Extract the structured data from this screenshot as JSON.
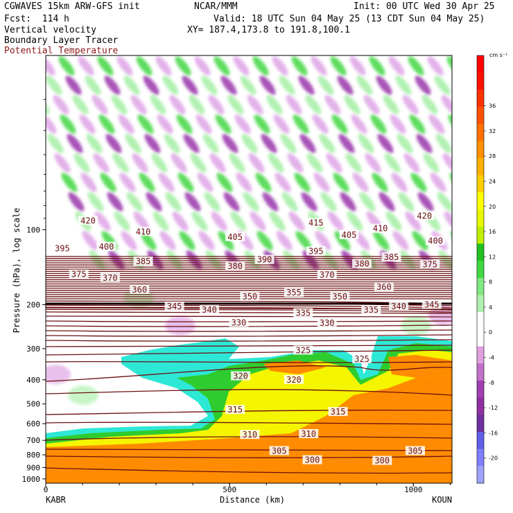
{
  "header": {
    "line1_left": "CGWAVES 15km ARW-GFS init",
    "line1_mid": "NCAR/MMM",
    "line1_right": "Init: 00 UTC Wed 30 Apr 25",
    "line2_left": "Fcst:  114 h",
    "line2_right": "Valid: 18 UTC Sun 04 May 25 (13 CDT Sun 04 May 25)",
    "line3_left": "Vertical velocity",
    "line3_right": "XY= 187.4,173.8 to 191.8,100.1",
    "line4_left": "Boundary Layer Tracer",
    "line5_left": "Potential Temperature"
  },
  "colors": {
    "theta": "#6b0f12",
    "theta_label_text": "#6b0f12",
    "potential_temperature_label": "#8b1a1a",
    "tracer_high": "#ff8c00",
    "tracer_mid": "#f5f500",
    "tracer_low": "#2ee8d6"
  },
  "chart_data": {
    "type": "cross-section",
    "xlabel": "Distance (km)",
    "ylabel": "Pressure (hPa), log scale",
    "x_ticks": [
      "0",
      "500",
      "1000"
    ],
    "x_tick_values": [
      0,
      500,
      1000
    ],
    "xlim": [
      0,
      1105
    ],
    "y_ticks": [
      "100",
      "200",
      "300",
      "400",
      "500",
      "600",
      "700",
      "800",
      "900",
      "1000"
    ],
    "y_tick_values": [
      100,
      200,
      300,
      400,
      500,
      600,
      700,
      800,
      900,
      1000
    ],
    "ylim": [
      1040,
      20
    ],
    "y_scale": "log",
    "left_endpoint": "KABR",
    "right_endpoint": "KOUN",
    "colorbar": {
      "unit": "cm s⁻¹",
      "levels": [
        -20,
        -16,
        -12,
        -8,
        -4,
        0,
        4,
        8,
        12,
        16,
        20,
        24,
        28,
        32,
        36
      ],
      "colors": [
        "#a0a0ff",
        "#8080ff",
        "#6060e8",
        "#7030a0",
        "#9030a0",
        "#a040b0",
        "#c070c8",
        "#e0a0e0",
        "#ffffff",
        "#ffffff",
        "#b0f0b0",
        "#80e880",
        "#40d840",
        "#20c020",
        "#c0f000",
        "#e8f800",
        "#ffff00",
        "#ffd000",
        "#ffb000",
        "#ff9000",
        "#ff7000",
        "#ff5000",
        "#ff3000",
        "#ff1000",
        "#ff0000"
      ]
    },
    "theta_labels": [
      {
        "text": "420",
        "x": 115,
        "p": 92
      },
      {
        "text": "410",
        "x": 265,
        "p": 102
      },
      {
        "text": "395",
        "x": 45,
        "p": 119
      },
      {
        "text": "400",
        "x": 165,
        "p": 117
      },
      {
        "text": "405",
        "x": 515,
        "p": 107
      },
      {
        "text": "415",
        "x": 735,
        "p": 94
      },
      {
        "text": "405",
        "x": 825,
        "p": 105
      },
      {
        "text": "410",
        "x": 910,
        "p": 99
      },
      {
        "text": "420",
        "x": 1030,
        "p": 88
      },
      {
        "text": "400",
        "x": 1060,
        "p": 111
      },
      {
        "text": "385",
        "x": 265,
        "p": 134
      },
      {
        "text": "380",
        "x": 515,
        "p": 140
      },
      {
        "text": "390",
        "x": 595,
        "p": 132
      },
      {
        "text": "395",
        "x": 735,
        "p": 122
      },
      {
        "text": "380",
        "x": 860,
        "p": 137
      },
      {
        "text": "385",
        "x": 940,
        "p": 129
      },
      {
        "text": "375",
        "x": 1045,
        "p": 138
      },
      {
        "text": "375",
        "x": 90,
        "p": 151
      },
      {
        "text": "370",
        "x": 175,
        "p": 156
      },
      {
        "text": "370",
        "x": 765,
        "p": 152
      },
      {
        "text": "360",
        "x": 255,
        "p": 174
      },
      {
        "text": "355",
        "x": 675,
        "p": 179
      },
      {
        "text": "350",
        "x": 555,
        "p": 186
      },
      {
        "text": "350",
        "x": 800,
        "p": 186
      },
      {
        "text": "360",
        "x": 920,
        "p": 170
      },
      {
        "text": "345",
        "x": 350,
        "p": 203
      },
      {
        "text": "340",
        "x": 445,
        "p": 210
      },
      {
        "text": "335",
        "x": 700,
        "p": 216
      },
      {
        "text": "335",
        "x": 885,
        "p": 210
      },
      {
        "text": "340",
        "x": 960,
        "p": 203
      },
      {
        "text": "345",
        "x": 1050,
        "p": 200
      },
      {
        "text": "330",
        "x": 525,
        "p": 236
      },
      {
        "text": "330",
        "x": 765,
        "p": 237
      },
      {
        "text": "325",
        "x": 700,
        "p": 305
      },
      {
        "text": "325",
        "x": 860,
        "p": 330
      },
      {
        "text": "320",
        "x": 530,
        "p": 387
      },
      {
        "text": "320",
        "x": 675,
        "p": 400
      },
      {
        "text": "315",
        "x": 515,
        "p": 528
      },
      {
        "text": "315",
        "x": 795,
        "p": 538
      },
      {
        "text": "310",
        "x": 555,
        "p": 665
      },
      {
        "text": "310",
        "x": 715,
        "p": 660
      },
      {
        "text": "305",
        "x": 635,
        "p": 772
      },
      {
        "text": "305",
        "x": 1005,
        "p": 772
      },
      {
        "text": "300",
        "x": 725,
        "p": 840
      },
      {
        "text": "300",
        "x": 915,
        "p": 845
      }
    ]
  }
}
